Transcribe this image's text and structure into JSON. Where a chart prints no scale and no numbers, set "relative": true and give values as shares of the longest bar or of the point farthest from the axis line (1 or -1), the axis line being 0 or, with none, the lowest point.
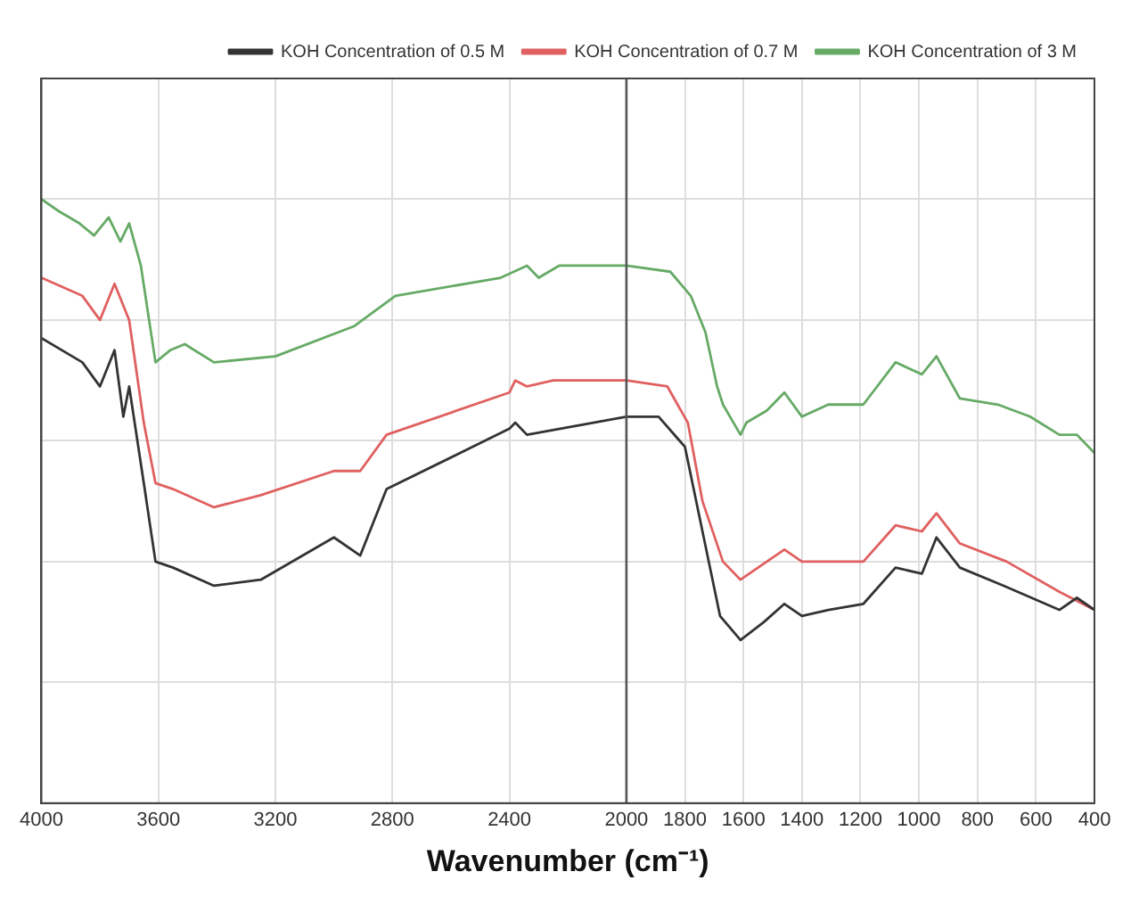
{
  "chart_data": {
    "type": "line",
    "xlabel": "Wavenumber (cm⁻¹)",
    "relative": true,
    "xlim": [
      4000,
      400
    ],
    "xticks": [
      4000,
      3600,
      3200,
      2800,
      2400,
      2000,
      1800,
      1600,
      1400,
      1200,
      1000,
      800,
      600,
      400
    ],
    "grid": true,
    "legend": "top right",
    "marker": "none",
    "line_style": "solid",
    "ref_lines": [
      {
        "axis": "x",
        "value": 2000,
        "color": "#555555"
      }
    ],
    "series": [
      {
        "name": "KOH Concentration of 0.5 M",
        "color": "#333333",
        "x": [
          4000,
          3860,
          3800,
          3750,
          3720,
          3700,
          3650,
          3610,
          3550,
          3410,
          3250,
          3000,
          2910,
          2820,
          2400,
          2380,
          2340,
          2000,
          1890,
          1800,
          1740,
          1680,
          1610,
          1530,
          1460,
          1400,
          1310,
          1190,
          1080,
          990,
          940,
          860,
          710,
          520,
          460,
          400
        ],
        "values": [
          0.77,
          0.73,
          0.69,
          0.75,
          0.64,
          0.69,
          0.53,
          0.4,
          0.39,
          0.36,
          0.37,
          0.44,
          0.41,
          0.52,
          0.62,
          0.63,
          0.61,
          0.64,
          0.64,
          0.59,
          0.45,
          0.31,
          0.27,
          0.3,
          0.33,
          0.31,
          0.32,
          0.33,
          0.39,
          0.38,
          0.44,
          0.39,
          0.36,
          0.32,
          0.34,
          0.32
        ]
      },
      {
        "name": "KOH Concentration of 0.7 M",
        "color": "#e06060",
        "x": [
          4000,
          3860,
          3800,
          3750,
          3700,
          3650,
          3610,
          3550,
          3410,
          3250,
          3000,
          2910,
          2820,
          2400,
          2380,
          2340,
          2250,
          2000,
          1860,
          1790,
          1740,
          1670,
          1610,
          1520,
          1460,
          1400,
          1190,
          1080,
          990,
          940,
          860,
          700,
          520,
          400
        ],
        "values": [
          0.87,
          0.84,
          0.8,
          0.86,
          0.8,
          0.63,
          0.53,
          0.52,
          0.49,
          0.51,
          0.55,
          0.55,
          0.61,
          0.68,
          0.7,
          0.69,
          0.7,
          0.7,
          0.69,
          0.63,
          0.5,
          0.4,
          0.37,
          0.4,
          0.42,
          0.4,
          0.4,
          0.46,
          0.45,
          0.48,
          0.43,
          0.4,
          0.35,
          0.32
        ]
      },
      {
        "name": "KOH Concentration of 3 M",
        "color": "#66aa66",
        "x": [
          4000,
          3940,
          3870,
          3820,
          3770,
          3730,
          3700,
          3660,
          3610,
          3560,
          3510,
          3410,
          3200,
          2930,
          2790,
          2430,
          2340,
          2300,
          2230,
          2000,
          1850,
          1780,
          1730,
          1690,
          1670,
          1610,
          1590,
          1520,
          1460,
          1400,
          1310,
          1190,
          1080,
          990,
          940,
          860,
          730,
          620,
          520,
          460,
          400
        ],
        "values": [
          1.0,
          0.98,
          0.96,
          0.94,
          0.97,
          0.93,
          0.96,
          0.89,
          0.73,
          0.75,
          0.76,
          0.73,
          0.74,
          0.79,
          0.84,
          0.87,
          0.89,
          0.87,
          0.89,
          0.89,
          0.88,
          0.84,
          0.78,
          0.69,
          0.66,
          0.61,
          0.63,
          0.65,
          0.68,
          0.64,
          0.66,
          0.66,
          0.73,
          0.71,
          0.74,
          0.67,
          0.66,
          0.64,
          0.61,
          0.61,
          0.58
        ]
      }
    ]
  }
}
